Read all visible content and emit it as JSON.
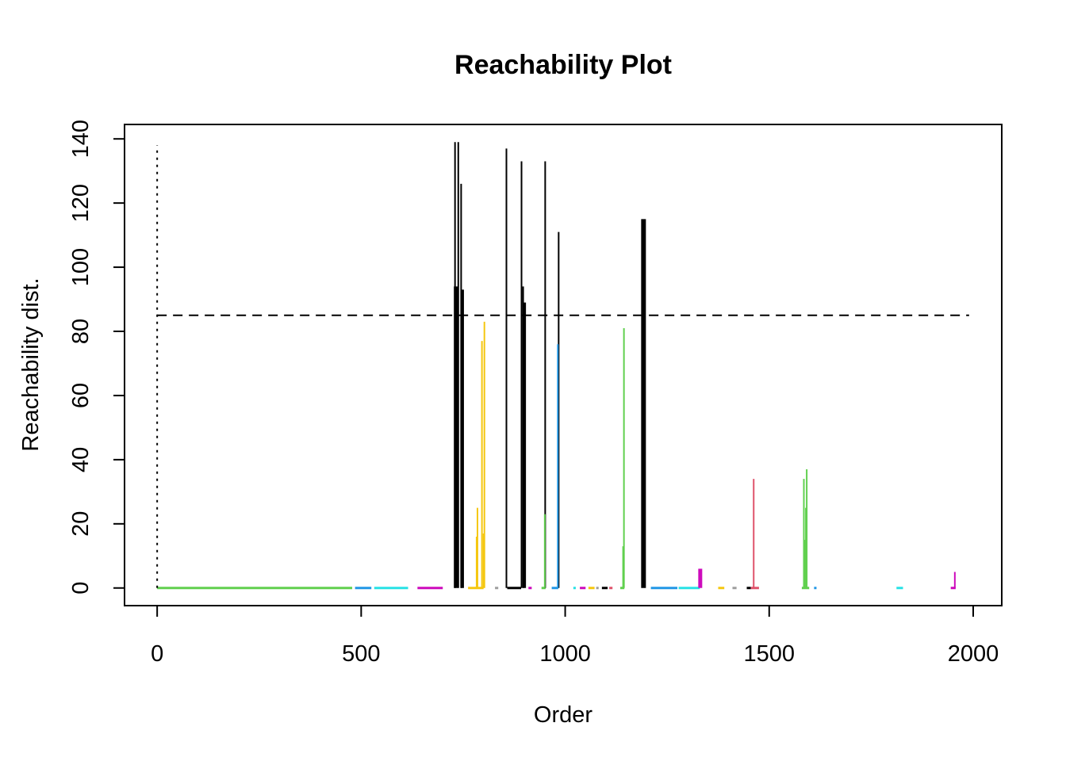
{
  "chart_data": {
    "type": "bar",
    "title": "Reachability Plot",
    "xlabel": "Order",
    "ylabel": "Reachability dist.",
    "xlim": [
      -80,
      2070
    ],
    "ylim": [
      -5.5,
      144.5
    ],
    "x_ticks": [
      0,
      500,
      1000,
      1500,
      2000
    ],
    "y_ticks": [
      0,
      20,
      40,
      60,
      80,
      100,
      120,
      140
    ],
    "threshold": 85,
    "first_point": {
      "order": 0,
      "reachability": 138
    },
    "grid": false,
    "legend": "none",
    "cluster_segments": [
      {
        "from": 0,
        "to": 478,
        "color": "#61d04f"
      },
      {
        "from": 485,
        "to": 525,
        "color": "#2297e6"
      },
      {
        "from": 532,
        "to": 615,
        "color": "#28e2e5"
      },
      {
        "from": 638,
        "to": 700,
        "color": "#cd0bbc"
      },
      {
        "from": 762,
        "to": 800,
        "color": "#f5c710"
      },
      {
        "from": 828,
        "to": 836,
        "color": "#9e9e9e"
      },
      {
        "from": 858,
        "to": 892,
        "color": "#000000"
      },
      {
        "from": 910,
        "to": 918,
        "color": "#cd0bbc"
      },
      {
        "from": 942,
        "to": 952,
        "color": "#61d04f"
      },
      {
        "from": 967,
        "to": 983,
        "color": "#2297e6"
      },
      {
        "from": 1020,
        "to": 1026,
        "color": "#28e2e5"
      },
      {
        "from": 1036,
        "to": 1050,
        "color": "#cd0bbc"
      },
      {
        "from": 1057,
        "to": 1072,
        "color": "#f5c710"
      },
      {
        "from": 1076,
        "to": 1082,
        "color": "#9e9e9e"
      },
      {
        "from": 1090,
        "to": 1104,
        "color": "#000000"
      },
      {
        "from": 1108,
        "to": 1116,
        "color": "#df536b"
      },
      {
        "from": 1135,
        "to": 1145,
        "color": "#61d04f"
      },
      {
        "from": 1210,
        "to": 1275,
        "color": "#2297e6"
      },
      {
        "from": 1278,
        "to": 1330,
        "color": "#28e2e5"
      },
      {
        "from": 1375,
        "to": 1390,
        "color": "#f5c710"
      },
      {
        "from": 1410,
        "to": 1420,
        "color": "#9e9e9e"
      },
      {
        "from": 1445,
        "to": 1455,
        "color": "#000000"
      },
      {
        "from": 1455,
        "to": 1475,
        "color": "#df536b"
      },
      {
        "from": 1580,
        "to": 1598,
        "color": "#61d04f"
      },
      {
        "from": 1610,
        "to": 1616,
        "color": "#2297e6"
      },
      {
        "from": 1812,
        "to": 1828,
        "color": "#28e2e5"
      },
      {
        "from": 1945,
        "to": 1957,
        "color": "#cd0bbc"
      }
    ],
    "spikes": [
      {
        "x": 730,
        "y": 139,
        "color": "#000000",
        "width": 2
      },
      {
        "x": 732,
        "y": 94,
        "color": "#000000",
        "width": 5
      },
      {
        "x": 738,
        "y": 139,
        "color": "#000000",
        "width": 2
      },
      {
        "x": 745,
        "y": 126,
        "color": "#000000",
        "width": 2
      },
      {
        "x": 748,
        "y": 93,
        "color": "#000000",
        "width": 4
      },
      {
        "x": 785,
        "y": 25,
        "color": "#f5c710",
        "width": 2
      },
      {
        "x": 783,
        "y": 16,
        "color": "#f5c710",
        "width": 2
      },
      {
        "x": 796,
        "y": 77,
        "color": "#f5c710",
        "width": 2
      },
      {
        "x": 802,
        "y": 83,
        "color": "#f5c710",
        "width": 2
      },
      {
        "x": 800,
        "y": 17,
        "color": "#f5c710",
        "width": 2
      },
      {
        "x": 856,
        "y": 137,
        "color": "#000000",
        "width": 2
      },
      {
        "x": 893,
        "y": 133,
        "color": "#000000",
        "width": 2
      },
      {
        "x": 897,
        "y": 94,
        "color": "#000000",
        "width": 2
      },
      {
        "x": 900,
        "y": 89,
        "color": "#000000",
        "width": 4
      },
      {
        "x": 951,
        "y": 133,
        "color": "#000000",
        "width": 2
      },
      {
        "x": 950,
        "y": 23,
        "color": "#61d04f",
        "width": 2
      },
      {
        "x": 984,
        "y": 111,
        "color": "#000000",
        "width": 2
      },
      {
        "x": 982,
        "y": 76,
        "color": "#2297e6",
        "width": 2
      },
      {
        "x": 1144,
        "y": 81,
        "color": "#61d04f",
        "width": 2
      },
      {
        "x": 1142,
        "y": 13,
        "color": "#61d04f",
        "width": 2
      },
      {
        "x": 1192,
        "y": 115,
        "color": "#000000",
        "width": 6
      },
      {
        "x": 1331,
        "y": 6,
        "color": "#cd0bbc",
        "width": 5
      },
      {
        "x": 1462,
        "y": 34,
        "color": "#df536b",
        "width": 2
      },
      {
        "x": 1585,
        "y": 34,
        "color": "#61d04f",
        "width": 2
      },
      {
        "x": 1588,
        "y": 15,
        "color": "#61d04f",
        "width": 2
      },
      {
        "x": 1592,
        "y": 37,
        "color": "#61d04f",
        "width": 2
      },
      {
        "x": 1590,
        "y": 25,
        "color": "#61d04f",
        "width": 2
      },
      {
        "x": 1955,
        "y": 5,
        "color": "#cd0bbc",
        "width": 2
      }
    ]
  }
}
